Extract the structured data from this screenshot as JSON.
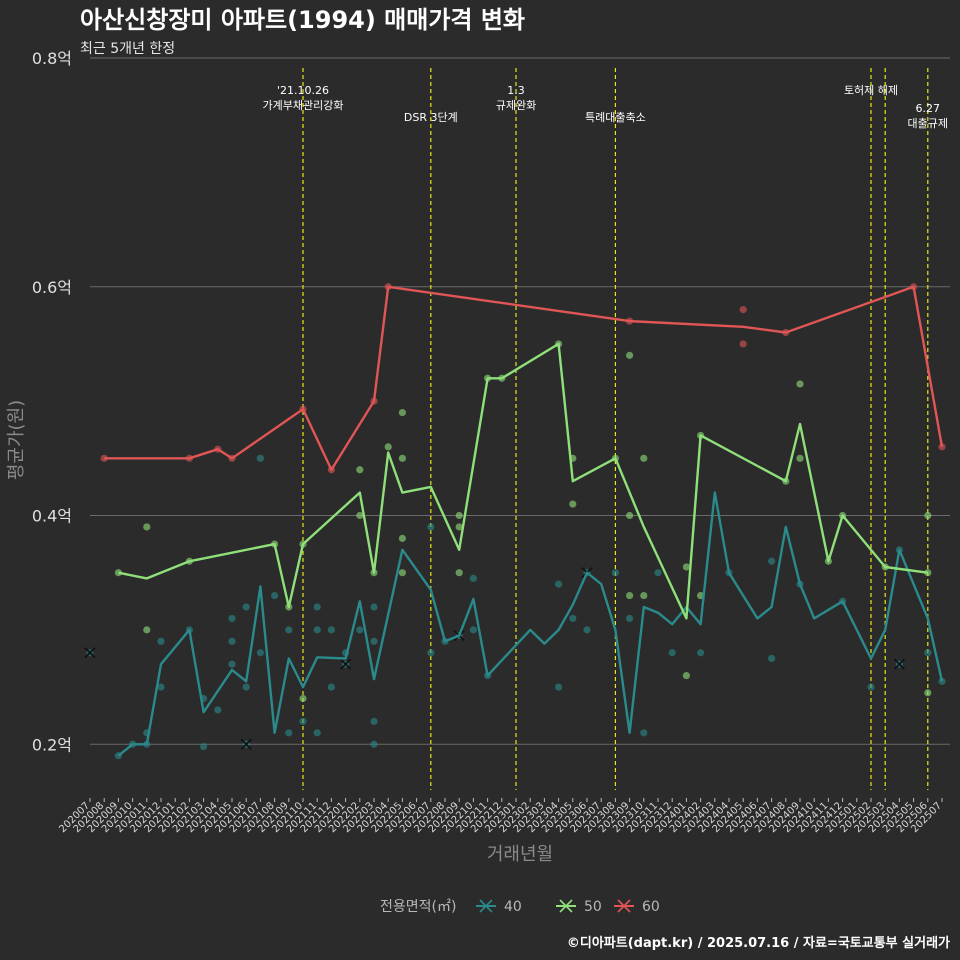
{
  "chart_data": {
    "type": "line",
    "title": "아산신창장미 아파트(1994) 매매가격 변화",
    "subtitle": "최근 5개년 한정",
    "xlabel": "거래년월",
    "ylabel": "평균가(원)",
    "ylim": [
      0.16,
      0.8
    ],
    "yticks": [
      {
        "value": 0.2,
        "label": "0.2억"
      },
      {
        "value": 0.4,
        "label": "0.4억"
      },
      {
        "value": 0.6,
        "label": "0.6억"
      },
      {
        "value": 0.8,
        "label": "0.8억"
      }
    ],
    "x_categories": [
      "202007",
      "202008",
      "202009",
      "202010",
      "202011",
      "202012",
      "202101",
      "202102",
      "202103",
      "202104",
      "202105",
      "202106",
      "202107",
      "202108",
      "202109",
      "202110",
      "202111",
      "202112",
      "202201",
      "202202",
      "202203",
      "202204",
      "202205",
      "202206",
      "202207",
      "202208",
      "202209",
      "202210",
      "202211",
      "202212",
      "202301",
      "202302",
      "202303",
      "202304",
      "202305",
      "202306",
      "202307",
      "202308",
      "202309",
      "202310",
      "202311",
      "202312",
      "202401",
      "202402",
      "202403",
      "202404",
      "202405",
      "202406",
      "202407",
      "202408",
      "202409",
      "202410",
      "202411",
      "202412",
      "202501",
      "202502",
      "202503",
      "202504",
      "202505",
      "202506",
      "202507"
    ],
    "events": [
      {
        "x": "202110",
        "label_lines": [
          "'21.10.26",
          "가계부채관리강화"
        ],
        "level": 1
      },
      {
        "x": "202207",
        "label_lines": [
          "DSR 3단계"
        ],
        "level": 2
      },
      {
        "x": "202301",
        "label_lines": [
          "1.3",
          "규제완화"
        ],
        "level": 1
      },
      {
        "x": "202308",
        "label_lines": [
          "특례대출축소"
        ],
        "level": 2
      },
      {
        "x": "202502",
        "label_lines": [
          "토허제 해제"
        ],
        "level": 1
      },
      {
        "x": "202503",
        "label_lines": [],
        "level": 1
      },
      {
        "x": "202506",
        "label_lines": [
          "6.27",
          "대출규제"
        ],
        "level": 3
      }
    ],
    "series": [
      {
        "name": "40",
        "color": "#2a8a8c",
        "line": [
          [
            "202009",
            0.19
          ],
          [
            "202010",
            0.2
          ],
          [
            "202011",
            0.2
          ],
          [
            "202012",
            0.27
          ],
          [
            "202102",
            0.3
          ],
          [
            "202103",
            0.228
          ],
          [
            "202105",
            0.265
          ],
          [
            "202106",
            0.255
          ],
          [
            "202107",
            0.338
          ],
          [
            "202108",
            0.21
          ],
          [
            "202109",
            0.275
          ],
          [
            "202110",
            0.25
          ],
          [
            "202111",
            0.276
          ],
          [
            "202201",
            0.275
          ],
          [
            "202202",
            0.325
          ],
          [
            "202203",
            0.257
          ],
          [
            "202205",
            0.37
          ],
          [
            "202207",
            0.335
          ],
          [
            "202208",
            0.29
          ],
          [
            "202209",
            0.295
          ],
          [
            "202210",
            0.327
          ],
          [
            "202211",
            0.26
          ],
          [
            "202302",
            0.3
          ],
          [
            "202303",
            0.288
          ],
          [
            "202304",
            0.3
          ],
          [
            "202305",
            0.322
          ],
          [
            "202306",
            0.35
          ],
          [
            "202307",
            0.34
          ],
          [
            "202308",
            0.3
          ],
          [
            "202309",
            0.21
          ],
          [
            "202310",
            0.32
          ],
          [
            "202311",
            0.315
          ],
          [
            "202312",
            0.305
          ],
          [
            "202401",
            0.32
          ],
          [
            "202402",
            0.305
          ],
          [
            "202403",
            0.42
          ],
          [
            "202404",
            0.35
          ],
          [
            "202405",
            0.33
          ],
          [
            "202406",
            0.31
          ],
          [
            "202407",
            0.32
          ],
          [
            "202408",
            0.39
          ],
          [
            "202409",
            0.34
          ],
          [
            "202410",
            0.31
          ],
          [
            "202412",
            0.325
          ],
          [
            "202501",
            0.3
          ],
          [
            "202502",
            0.275
          ],
          [
            "202503",
            0.3
          ],
          [
            "202504",
            0.37
          ],
          [
            "202506",
            0.31
          ],
          [
            "202507",
            0.255
          ]
        ],
        "points": [
          [
            "202009",
            0.19
          ],
          [
            "202010",
            0.2
          ],
          [
            "202011",
            0.21
          ],
          [
            "202011",
            0.2
          ],
          [
            "202012",
            0.29
          ],
          [
            "202012",
            0.25
          ],
          [
            "202102",
            0.3
          ],
          [
            "202103",
            0.24
          ],
          [
            "202103",
            0.198
          ],
          [
            "202104",
            0.23
          ],
          [
            "202105",
            0.31
          ],
          [
            "202105",
            0.27
          ],
          [
            "202105",
            0.29
          ],
          [
            "202106",
            0.32
          ],
          [
            "202106",
            0.25
          ],
          [
            "202107",
            0.45
          ],
          [
            "202107",
            0.28
          ],
          [
            "202108",
            0.33
          ],
          [
            "202109",
            0.3
          ],
          [
            "202109",
            0.21
          ],
          [
            "202110",
            0.22
          ],
          [
            "202111",
            0.32
          ],
          [
            "202111",
            0.3
          ],
          [
            "202111",
            0.21
          ],
          [
            "202112",
            0.3
          ],
          [
            "202112",
            0.25
          ],
          [
            "202201",
            0.28
          ],
          [
            "202202",
            0.3
          ],
          [
            "202203",
            0.32
          ],
          [
            "202203",
            0.29
          ],
          [
            "202203",
            0.22
          ],
          [
            "202203",
            0.2
          ],
          [
            "202207",
            0.39
          ],
          [
            "202207",
            0.28
          ],
          [
            "202208",
            0.29
          ],
          [
            "202210",
            0.345
          ],
          [
            "202210",
            0.3
          ],
          [
            "202211",
            0.26
          ],
          [
            "202304",
            0.34
          ],
          [
            "202304",
            0.25
          ],
          [
            "202305",
            0.31
          ],
          [
            "202306",
            0.3
          ],
          [
            "202308",
            0.35
          ],
          [
            "202309",
            0.31
          ],
          [
            "202310",
            0.21
          ],
          [
            "202311",
            0.35
          ],
          [
            "202312",
            0.28
          ],
          [
            "202402",
            0.28
          ],
          [
            "202404",
            0.35
          ],
          [
            "202407",
            0.275
          ],
          [
            "202407",
            0.36
          ],
          [
            "202409",
            0.34
          ],
          [
            "202412",
            0.325
          ],
          [
            "202502",
            0.25
          ],
          [
            "202504",
            0.37
          ],
          [
            "202506",
            0.28
          ],
          [
            "202507",
            0.255
          ]
        ],
        "cross_points": [
          [
            "202007",
            0.28
          ],
          [
            "202106",
            0.2
          ],
          [
            "202201",
            0.27
          ],
          [
            "202209",
            0.295
          ],
          [
            "202306",
            0.35
          ],
          [
            "202504",
            0.27
          ]
        ]
      },
      {
        "name": "50",
        "color": "#8fe07a",
        "line": [
          [
            "202009",
            0.35
          ],
          [
            "202011",
            0.345
          ],
          [
            "202102",
            0.36
          ],
          [
            "202108",
            0.375
          ],
          [
            "202109",
            0.32
          ],
          [
            "202110",
            0.375
          ],
          [
            "202202",
            0.42
          ],
          [
            "202203",
            0.35
          ],
          [
            "202204",
            0.455
          ],
          [
            "202205",
            0.42
          ],
          [
            "202207",
            0.425
          ],
          [
            "202209",
            0.37
          ],
          [
            "202211",
            0.52
          ],
          [
            "202212",
            0.52
          ],
          [
            "202304",
            0.55
          ],
          [
            "202305",
            0.43
          ],
          [
            "202308",
            0.45
          ],
          [
            "202309",
            0.42
          ],
          [
            "202310",
            0.39
          ],
          [
            "202401",
            0.31
          ],
          [
            "202402",
            0.47
          ],
          [
            "202408",
            0.43
          ],
          [
            "202409",
            0.48
          ],
          [
            "202411",
            0.36
          ],
          [
            "202412",
            0.4
          ],
          [
            "202503",
            0.355
          ],
          [
            "202506",
            0.35
          ]
        ],
        "points": [
          [
            "202009",
            0.35
          ],
          [
            "202011",
            0.39
          ],
          [
            "202011",
            0.3
          ],
          [
            "202102",
            0.36
          ],
          [
            "202108",
            0.375
          ],
          [
            "202109",
            0.32
          ],
          [
            "202110",
            0.375
          ],
          [
            "202110",
            0.24
          ],
          [
            "202202",
            0.44
          ],
          [
            "202202",
            0.4
          ],
          [
            "202203",
            0.35
          ],
          [
            "202204",
            0.46
          ],
          [
            "202205",
            0.49
          ],
          [
            "202205",
            0.45
          ],
          [
            "202205",
            0.38
          ],
          [
            "202205",
            0.35
          ],
          [
            "202209",
            0.4
          ],
          [
            "202209",
            0.39
          ],
          [
            "202209",
            0.35
          ],
          [
            "202211",
            0.52
          ],
          [
            "202212",
            0.52
          ],
          [
            "202304",
            0.55
          ],
          [
            "202305",
            0.45
          ],
          [
            "202305",
            0.41
          ],
          [
            "202308",
            0.45
          ],
          [
            "202309",
            0.54
          ],
          [
            "202309",
            0.4
          ],
          [
            "202309",
            0.33
          ],
          [
            "202310",
            0.45
          ],
          [
            "202310",
            0.33
          ],
          [
            "202401",
            0.355
          ],
          [
            "202401",
            0.26
          ],
          [
            "202402",
            0.47
          ],
          [
            "202402",
            0.33
          ],
          [
            "202408",
            0.43
          ],
          [
            "202409",
            0.515
          ],
          [
            "202409",
            0.45
          ],
          [
            "202411",
            0.36
          ],
          [
            "202412",
            0.4
          ],
          [
            "202503",
            0.355
          ],
          [
            "202506",
            0.4
          ],
          [
            "202506",
            0.35
          ],
          [
            "202506",
            0.245
          ]
        ],
        "cross_points": []
      },
      {
        "name": "60",
        "color": "#e05555",
        "line": [
          [
            "202008",
            0.45
          ],
          [
            "202102",
            0.45
          ],
          [
            "202104",
            0.458
          ],
          [
            "202105",
            0.45
          ],
          [
            "202110",
            0.493
          ],
          [
            "202112",
            0.44
          ],
          [
            "202203",
            0.5
          ],
          [
            "202204",
            0.6
          ],
          [
            "202309",
            0.57
          ],
          [
            "202405",
            0.565
          ],
          [
            "202408",
            0.56
          ],
          [
            "202505",
            0.6
          ],
          [
            "202507",
            0.46
          ]
        ],
        "points": [
          [
            "202008",
            0.45
          ],
          [
            "202102",
            0.45
          ],
          [
            "202104",
            0.458
          ],
          [
            "202105",
            0.45
          ],
          [
            "202110",
            0.493
          ],
          [
            "202112",
            0.44
          ],
          [
            "202203",
            0.5
          ],
          [
            "202204",
            0.6
          ],
          [
            "202309",
            0.57
          ],
          [
            "202405",
            0.58
          ],
          [
            "202405",
            0.55
          ],
          [
            "202408",
            0.56
          ],
          [
            "202505",
            0.6
          ],
          [
            "202507",
            0.46
          ]
        ],
        "cross_points": []
      }
    ],
    "legend": {
      "title": "전용면적(㎡)",
      "position": "bottom"
    },
    "grid": true
  },
  "caption": "©디아파트(dapt.kr) / 2025.07.16 / 자료=국토교통부 실거래가"
}
